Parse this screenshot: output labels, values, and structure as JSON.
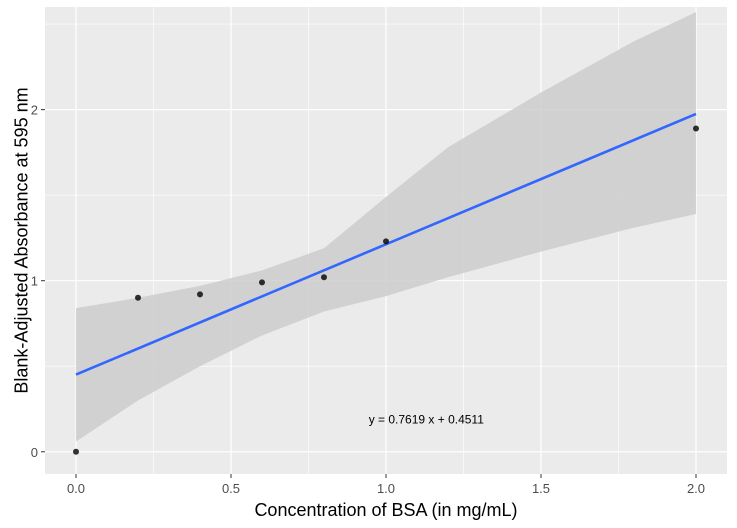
{
  "chart_data": {
    "type": "scatter",
    "title": "",
    "xlabel": "Concentration of BSA (in mg/mL)",
    "ylabel": "Blank-Adjusted Absorbance at 595 nm",
    "xlim": [
      -0.1,
      2.1
    ],
    "ylim": [
      -0.13,
      2.6
    ],
    "x_ticks": [
      0.0,
      0.5,
      1.0,
      1.5,
      2.0
    ],
    "x_tick_labels": [
      "0.0",
      "0.5",
      "1.0",
      "1.5",
      "2.0"
    ],
    "y_ticks": [
      0,
      1,
      2
    ],
    "y_tick_labels": [
      "0",
      "1",
      "2"
    ],
    "grid": true,
    "points": [
      {
        "x": 0.0,
        "y": 0.0
      },
      {
        "x": 0.2,
        "y": 0.9
      },
      {
        "x": 0.4,
        "y": 0.92
      },
      {
        "x": 0.6,
        "y": 0.99
      },
      {
        "x": 0.8,
        "y": 1.02
      },
      {
        "x": 1.0,
        "y": 1.23
      },
      {
        "x": 2.0,
        "y": 1.89
      }
    ],
    "fit": {
      "slope": 0.7619,
      "intercept": 0.4511,
      "x_range": [
        0.0,
        2.0
      ]
    },
    "confidence_band": [
      {
        "x": 0.0,
        "lower": 0.06,
        "upper": 0.84
      },
      {
        "x": 0.2,
        "lower": 0.3,
        "upper": 0.9
      },
      {
        "x": 0.4,
        "lower": 0.5,
        "upper": 0.97
      },
      {
        "x": 0.6,
        "lower": 0.68,
        "upper": 1.06
      },
      {
        "x": 0.8,
        "lower": 0.82,
        "upper": 1.19
      },
      {
        "x": 1.0,
        "lower": 0.91,
        "upper": 1.49
      },
      {
        "x": 1.2,
        "lower": 1.02,
        "upper": 1.78
      },
      {
        "x": 1.5,
        "lower": 1.17,
        "upper": 2.1
      },
      {
        "x": 1.8,
        "lower": 1.31,
        "upper": 2.4
      },
      {
        "x": 2.0,
        "lower": 1.39,
        "upper": 2.57
      }
    ],
    "annotation": {
      "text": "y =  0.7619 x + 0.4511",
      "x": 1.13,
      "y": 0.19
    },
    "colors": {
      "panel": "#ebebeb",
      "grid": "#ffffff",
      "line": "#3366ff",
      "band": "#cccccc",
      "point": "#000000"
    }
  }
}
